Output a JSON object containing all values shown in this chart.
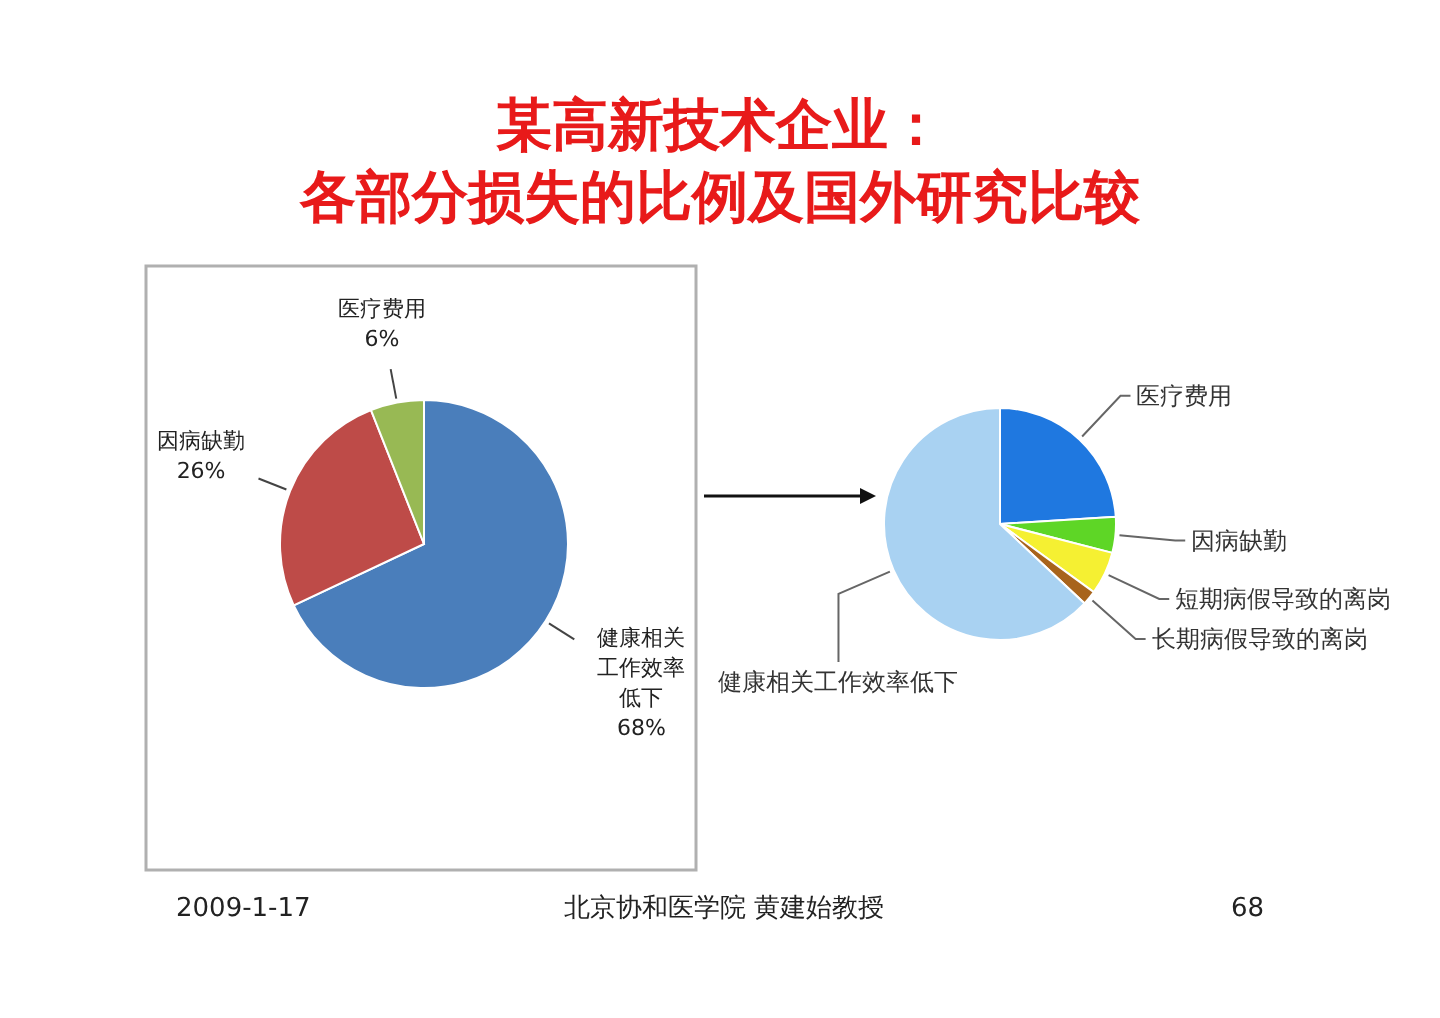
{
  "chart_data": [
    {
      "type": "pie",
      "title": "某高新技术企业：",
      "subtitle": "各部分损失的比例及国外研究比较",
      "categories": [
        "健康相关工作效率低下",
        "因病缺勤",
        "医疗费用"
      ],
      "values": [
        68,
        26,
        6
      ],
      "value_labels": [
        "68%",
        "26%",
        "6%"
      ],
      "colors": [
        "#4a7ebb",
        "#be4b48",
        "#98b954"
      ],
      "annotations": [
        "2009-1-17",
        "北京协和医学院 黄建始教授",
        "68"
      ]
    },
    {
      "type": "pie",
      "categories": [
        "医疗费用",
        "因病缺勤",
        "短期病假导致的离岗",
        "长期病假导致的离岗",
        "健康相关工作效率低下"
      ],
      "values": [
        24,
        5,
        6,
        2,
        63
      ],
      "colors": [
        "#1f78e0",
        "#5ed626",
        "#f5f032",
        "#a8641c",
        "#a9d2f2"
      ]
    }
  ]
}
